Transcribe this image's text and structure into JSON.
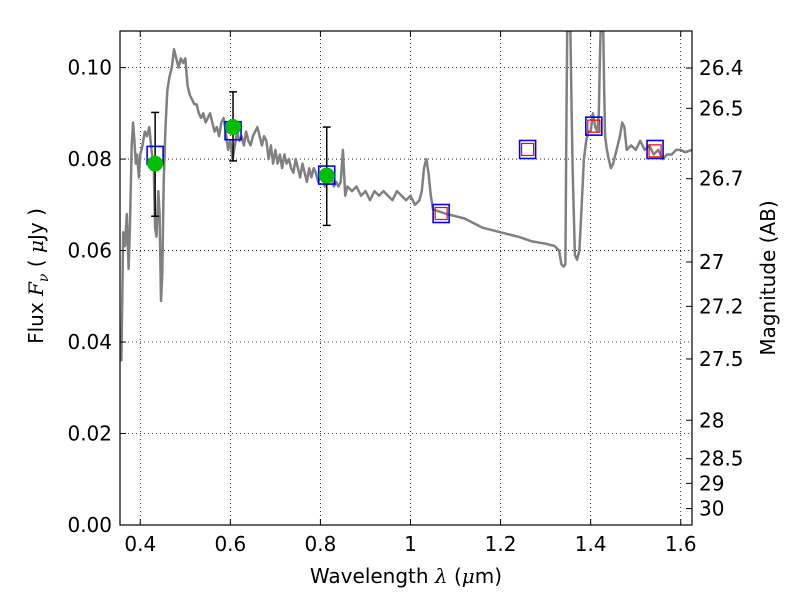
{
  "chart_data": {
    "type": "scatter",
    "title": "",
    "xlabel": "Wavelength  λ (μm)",
    "ylabel": "Flux  F_ν  ( μJy )",
    "ylabel_parts": [
      "Flux  ",
      "F",
      "ν",
      "  (  ",
      "μ",
      "Jy )"
    ],
    "xlabel_parts": [
      "Wavelength  ",
      "λ",
      " (",
      "μ",
      "m)"
    ],
    "right_ylabel": "Magnitude (AB)",
    "xlim": [
      0.355,
      1.625
    ],
    "ylim": [
      0.0,
      0.108
    ],
    "grid": true,
    "x_ticks": [
      {
        "value": 0.4,
        "label": "0.4"
      },
      {
        "value": 0.6,
        "label": "0.6"
      },
      {
        "value": 0.8,
        "label": "0.8"
      },
      {
        "value": 1.0,
        "label": "1"
      },
      {
        "value": 1.2,
        "label": "1.2"
      },
      {
        "value": 1.4,
        "label": "1.4"
      },
      {
        "value": 1.6,
        "label": "1.6"
      }
    ],
    "y_ticks": [
      {
        "value": 0.0,
        "label": "0.00"
      },
      {
        "value": 0.02,
        "label": "0.02"
      },
      {
        "value": 0.04,
        "label": "0.04"
      },
      {
        "value": 0.06,
        "label": "0.06"
      },
      {
        "value": 0.08,
        "label": "0.08"
      },
      {
        "value": 0.1,
        "label": "0.10"
      }
    ],
    "right_ticks": [
      {
        "flux": 0.0999,
        "label": "26.4"
      },
      {
        "flux": 0.0911,
        "label": "26.5"
      },
      {
        "flux": 0.0757,
        "label": "26.7"
      },
      {
        "flux": 0.0575,
        "label": "27"
      },
      {
        "flux": 0.0478,
        "label": "27.2"
      },
      {
        "flux": 0.0363,
        "label": "27.5"
      },
      {
        "flux": 0.0229,
        "label": "28"
      },
      {
        "flux": 0.0145,
        "label": "28.5"
      },
      {
        "flux": 0.0091,
        "label": "29"
      },
      {
        "flux": 0.0036,
        "label": "30"
      }
    ],
    "series": [
      {
        "kind": "spectrum",
        "color": "#808080",
        "points": [
          [
            0.355,
            0.039
          ],
          [
            0.358,
            0.036
          ],
          [
            0.362,
            0.064
          ],
          [
            0.366,
            0.061
          ],
          [
            0.37,
            0.068
          ],
          [
            0.374,
            0.056
          ],
          [
            0.377,
            0.065
          ],
          [
            0.381,
            0.083
          ],
          [
            0.384,
            0.088
          ],
          [
            0.387,
            0.084
          ],
          [
            0.39,
            0.079
          ],
          [
            0.393,
            0.081
          ],
          [
            0.397,
            0.076
          ],
          [
            0.4,
            0.081
          ],
          [
            0.405,
            0.083
          ],
          [
            0.41,
            0.086
          ],
          [
            0.415,
            0.085
          ],
          [
            0.42,
            0.087
          ],
          [
            0.425,
            0.082
          ],
          [
            0.43,
            0.078
          ],
          [
            0.433,
            0.065
          ],
          [
            0.436,
            0.063
          ],
          [
            0.44,
            0.073
          ],
          [
            0.443,
            0.068
          ],
          [
            0.446,
            0.049
          ],
          [
            0.449,
            0.055
          ],
          [
            0.452,
            0.075
          ],
          [
            0.456,
            0.087
          ],
          [
            0.46,
            0.095
          ],
          [
            0.465,
            0.098
          ],
          [
            0.47,
            0.1
          ],
          [
            0.475,
            0.104
          ],
          [
            0.48,
            0.102
          ],
          [
            0.485,
            0.1
          ],
          [
            0.49,
            0.102
          ],
          [
            0.495,
            0.101
          ],
          [
            0.5,
            0.102
          ],
          [
            0.505,
            0.096
          ],
          [
            0.51,
            0.094
          ],
          [
            0.515,
            0.093
          ],
          [
            0.52,
            0.092
          ],
          [
            0.525,
            0.092
          ],
          [
            0.53,
            0.09
          ],
          [
            0.535,
            0.089
          ],
          [
            0.54,
            0.09
          ],
          [
            0.545,
            0.088
          ],
          [
            0.55,
            0.089
          ],
          [
            0.555,
            0.09
          ],
          [
            0.56,
            0.088
          ],
          [
            0.565,
            0.086
          ],
          [
            0.57,
            0.087
          ],
          [
            0.575,
            0.085
          ],
          [
            0.58,
            0.088
          ],
          [
            0.585,
            0.089
          ],
          [
            0.59,
            0.086
          ],
          [
            0.595,
            0.082
          ],
          [
            0.6,
            0.084
          ],
          [
            0.605,
            0.08
          ],
          [
            0.61,
            0.083
          ],
          [
            0.615,
            0.086
          ],
          [
            0.62,
            0.084
          ],
          [
            0.625,
            0.085
          ],
          [
            0.63,
            0.083
          ],
          [
            0.635,
            0.086
          ],
          [
            0.64,
            0.084
          ],
          [
            0.645,
            0.083
          ],
          [
            0.65,
            0.085
          ],
          [
            0.655,
            0.086
          ],
          [
            0.66,
            0.087
          ],
          [
            0.665,
            0.085
          ],
          [
            0.67,
            0.083
          ],
          [
            0.675,
            0.085
          ],
          [
            0.68,
            0.084
          ],
          [
            0.685,
            0.08
          ],
          [
            0.69,
            0.083
          ],
          [
            0.695,
            0.079
          ],
          [
            0.7,
            0.082
          ],
          [
            0.705,
            0.079
          ],
          [
            0.71,
            0.081
          ],
          [
            0.715,
            0.078
          ],
          [
            0.72,
            0.081
          ],
          [
            0.725,
            0.079
          ],
          [
            0.73,
            0.08
          ],
          [
            0.735,
            0.078
          ],
          [
            0.74,
            0.077
          ],
          [
            0.745,
            0.08
          ],
          [
            0.75,
            0.078
          ],
          [
            0.755,
            0.076
          ],
          [
            0.76,
            0.079
          ],
          [
            0.765,
            0.077
          ],
          [
            0.77,
            0.075
          ],
          [
            0.775,
            0.078
          ],
          [
            0.78,
            0.076
          ],
          [
            0.785,
            0.078
          ],
          [
            0.79,
            0.077
          ],
          [
            0.795,
            0.075
          ],
          [
            0.8,
            0.077
          ],
          [
            0.805,
            0.076
          ],
          [
            0.81,
            0.074
          ],
          [
            0.815,
            0.077
          ],
          [
            0.82,
            0.075
          ],
          [
            0.825,
            0.076
          ],
          [
            0.83,
            0.074
          ],
          [
            0.835,
            0.075
          ],
          [
            0.84,
            0.074
          ],
          [
            0.845,
            0.075
          ],
          [
            0.85,
            0.082
          ],
          [
            0.855,
            0.072
          ],
          [
            0.86,
            0.074
          ],
          [
            0.87,
            0.073
          ],
          [
            0.88,
            0.074
          ],
          [
            0.89,
            0.072
          ],
          [
            0.9,
            0.073
          ],
          [
            0.91,
            0.071
          ],
          [
            0.92,
            0.073
          ],
          [
            0.93,
            0.072
          ],
          [
            0.94,
            0.073
          ],
          [
            0.95,
            0.072
          ],
          [
            0.96,
            0.071
          ],
          [
            0.97,
            0.073
          ],
          [
            0.98,
            0.072
          ],
          [
            0.99,
            0.071
          ],
          [
            1.0,
            0.072
          ],
          [
            1.01,
            0.07
          ],
          [
            1.02,
            0.071
          ],
          [
            1.025,
            0.073
          ],
          [
            1.03,
            0.078
          ],
          [
            1.035,
            0.08
          ],
          [
            1.04,
            0.077
          ],
          [
            1.045,
            0.072
          ],
          [
            1.05,
            0.069
          ],
          [
            1.08,
            0.068
          ],
          [
            1.12,
            0.067
          ],
          [
            1.16,
            0.065
          ],
          [
            1.2,
            0.064
          ],
          [
            1.24,
            0.063
          ],
          [
            1.27,
            0.062
          ],
          [
            1.3,
            0.0615
          ],
          [
            1.32,
            0.061
          ],
          [
            1.33,
            0.06
          ],
          [
            1.335,
            0.057
          ],
          [
            1.34,
            0.0565
          ],
          [
            1.344,
            0.057
          ],
          [
            1.346,
            0.085
          ],
          [
            1.348,
            0.108
          ],
          [
            1.355,
            0.108
          ],
          [
            1.357,
            0.095
          ],
          [
            1.36,
            0.078
          ],
          [
            1.365,
            0.059
          ],
          [
            1.37,
            0.058
          ],
          [
            1.375,
            0.06
          ],
          [
            1.38,
            0.07
          ],
          [
            1.385,
            0.08
          ],
          [
            1.39,
            0.084
          ],
          [
            1.395,
            0.086
          ],
          [
            1.4,
            0.086
          ],
          [
            1.405,
            0.09
          ],
          [
            1.41,
            0.087
          ],
          [
            1.415,
            0.086
          ],
          [
            1.418,
            0.09
          ],
          [
            1.42,
            0.1
          ],
          [
            1.422,
            0.108
          ],
          [
            1.428,
            0.108
          ],
          [
            1.43,
            0.095
          ],
          [
            1.432,
            0.085
          ],
          [
            1.436,
            0.082
          ],
          [
            1.44,
            0.08
          ],
          [
            1.445,
            0.078
          ],
          [
            1.45,
            0.079
          ],
          [
            1.455,
            0.081
          ],
          [
            1.46,
            0.083
          ],
          [
            1.465,
            0.085
          ],
          [
            1.47,
            0.088
          ],
          [
            1.475,
            0.087
          ],
          [
            1.48,
            0.082
          ],
          [
            1.49,
            0.083
          ],
          [
            1.5,
            0.082
          ],
          [
            1.51,
            0.084
          ],
          [
            1.52,
            0.082
          ],
          [
            1.53,
            0.083
          ],
          [
            1.54,
            0.081
          ],
          [
            1.55,
            0.082
          ],
          [
            1.56,
            0.08
          ],
          [
            1.57,
            0.081
          ],
          [
            1.58,
            0.081
          ],
          [
            1.59,
            0.082
          ],
          [
            1.6,
            0.082
          ],
          [
            1.61,
            0.0815
          ],
          [
            1.625,
            0.082
          ]
        ]
      },
      {
        "kind": "model_photometry",
        "edge_color": "#0000ff",
        "points": [
          {
            "x": 0.433,
            "y": 0.0808
          },
          {
            "x": 0.606,
            "y": 0.0862
          },
          {
            "x": 0.814,
            "y": 0.0765
          },
          {
            "x": 1.068,
            "y": 0.0681
          },
          {
            "x": 1.26,
            "y": 0.0821
          },
          {
            "x": 1.407,
            "y": 0.0872
          },
          {
            "x": 1.543,
            "y": 0.0821
          }
        ]
      },
      {
        "kind": "predicted_flux",
        "edge_color": "#ff0000",
        "points": [
          {
            "x": 1.068,
            "y": 0.0681
          },
          {
            "x": 1.26,
            "y": 0.0821
          },
          {
            "x": 1.407,
            "y": 0.0872
          },
          {
            "x": 1.543,
            "y": 0.0818
          }
        ]
      },
      {
        "kind": "observed",
        "color": "#00c000",
        "points": [
          {
            "x": 0.433,
            "y": 0.079,
            "err_low": 0.0675,
            "err_high": 0.0902
          },
          {
            "x": 0.606,
            "y": 0.087,
            "err_low": 0.0796,
            "err_high": 0.0947
          },
          {
            "x": 0.814,
            "y": 0.0764,
            "err_low": 0.0655,
            "err_high": 0.087
          }
        ]
      }
    ]
  }
}
